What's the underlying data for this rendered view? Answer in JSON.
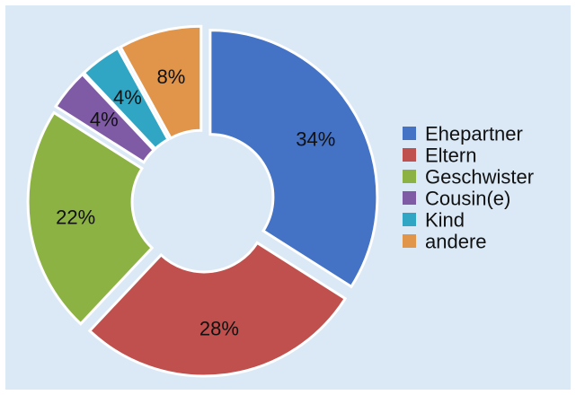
{
  "chart_data": {
    "type": "pie",
    "donut": true,
    "legend_position": "right",
    "categories": [
      "Ehepartner",
      "Eltern",
      "Geschwister",
      "Cousin(e)",
      "Kind",
      "andere"
    ],
    "values": [
      34,
      28,
      22,
      4,
      4,
      8
    ],
    "value_labels": [
      "34%",
      "28%",
      "22%",
      "4%",
      "4%",
      "8%"
    ],
    "colors": [
      "#4472c4",
      "#c0504d",
      "#8db244",
      "#7f5ba6",
      "#31a6c4",
      "#e0954b"
    ]
  }
}
